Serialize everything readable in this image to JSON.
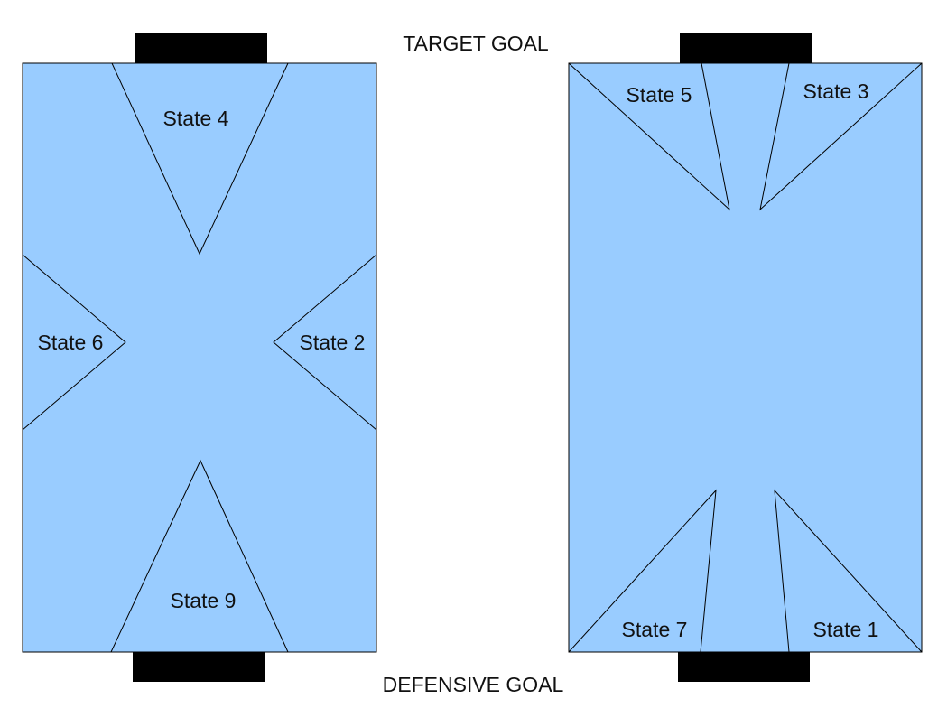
{
  "header": {
    "target_goal_label": "TARGET GOAL"
  },
  "footer": {
    "defensive_goal_label": "DEFENSIVE GOAL"
  },
  "colors": {
    "field": "#99ccff",
    "goal": "#000000",
    "line": "#000000"
  },
  "left_field": {
    "states": {
      "top": "State 4",
      "left": "State 6",
      "right": "State 2",
      "bottom": "State 9"
    }
  },
  "right_field": {
    "states": {
      "top_left": "State 5",
      "top_right": "State 3",
      "bottom_left": "State 7",
      "bottom_right": "State 1"
    }
  }
}
